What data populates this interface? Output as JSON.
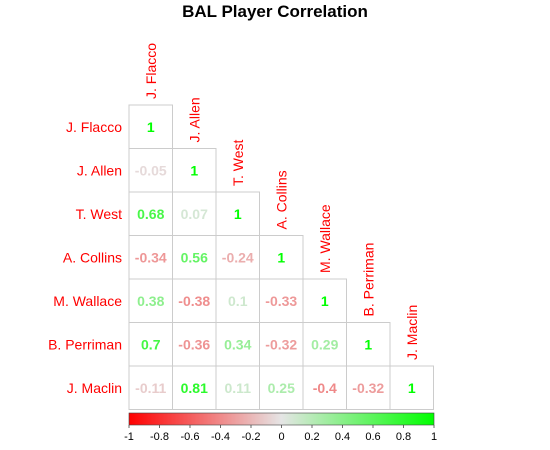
{
  "chart_data": {
    "type": "heatmap",
    "title": "BAL Player Correlation",
    "players": [
      "J. Flacco",
      "J. Allen",
      "T. West",
      "A. Collins",
      "M. Wallace",
      "B. Perriman",
      "J. Maclin"
    ],
    "matrix": [
      [
        1
      ],
      [
        -0.05,
        1
      ],
      [
        0.68,
        0.07,
        1
      ],
      [
        -0.34,
        0.56,
        -0.24,
        1
      ],
      [
        0.38,
        -0.38,
        0.1,
        -0.33,
        1
      ],
      [
        0.7,
        -0.36,
        0.34,
        -0.32,
        0.29,
        1
      ],
      [
        -0.11,
        0.81,
        0.11,
        0.25,
        -0.4,
        -0.32,
        1
      ]
    ],
    "color_scale": {
      "range": [
        -1,
        1
      ],
      "low_color": "#ff0000",
      "mid_color": "#e5e5e5",
      "high_color": "#00ff00",
      "ticks": [
        "-1",
        "-0.8",
        "-0.6",
        "-0.4",
        "-0.2",
        "0",
        "0.2",
        "0.4",
        "0.6",
        "0.8",
        "1"
      ]
    },
    "label_color": "#ff0000",
    "layout": "lower-triangle"
  }
}
